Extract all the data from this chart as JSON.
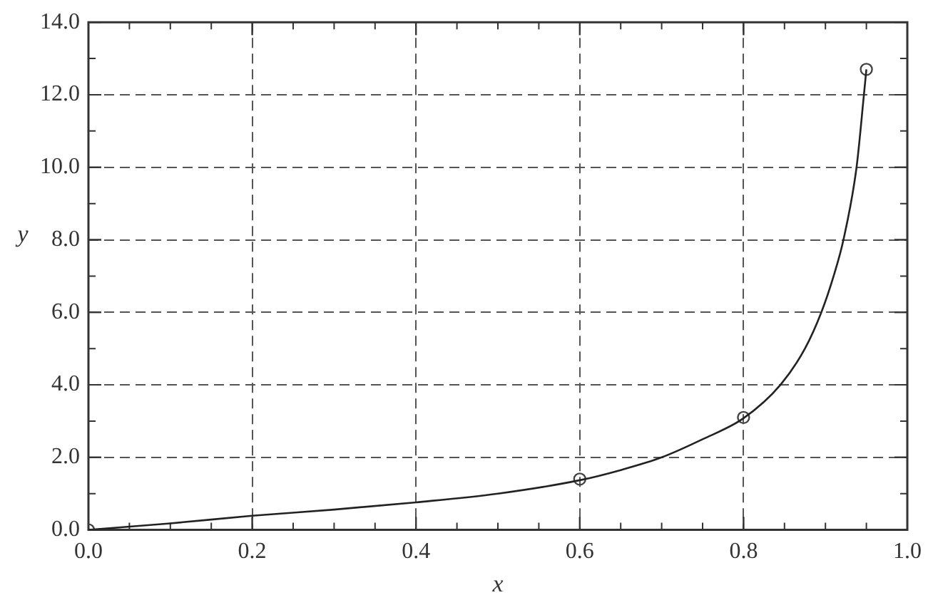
{
  "chart_data": {
    "type": "line",
    "xlabel": "x",
    "ylabel": "y",
    "series": [
      {
        "color": "#222222",
        "marker": "none",
        "x": [
          0,
          0.1,
          0.2,
          0.3,
          0.4,
          0.5,
          0.6,
          0.65,
          0.7,
          0.75,
          0.8,
          0.845,
          0.875,
          0.895,
          0.91,
          0.922,
          0.938,
          0.947,
          0.95
        ],
        "values": [
          0,
          0.18,
          0.39,
          0.56,
          0.76,
          1.0,
          1.37,
          1.65,
          2.0,
          2.5,
          3.08,
          4.0,
          5.0,
          6.0,
          7.0,
          8.0,
          10.0,
          12.0,
          12.7
        ]
      },
      {
        "type": "scatter",
        "color": "#444444",
        "marker": "circle",
        "x": [
          0,
          0.6,
          0.8,
          0.95
        ],
        "values": [
          0,
          1.4,
          3.1,
          12.7
        ]
      }
    ],
    "xlim": [
      0,
      1
    ],
    "ylim": [
      0,
      14
    ],
    "xticks": [
      {
        "value": 0,
        "label": "0.0"
      },
      0.2,
      0.4,
      0.6,
      0.8,
      {
        "value": 1,
        "label": "1.0"
      }
    ],
    "yticks": [
      {
        "value": 0,
        "label": "0.0"
      },
      {
        "value": 2,
        "label": "2.0"
      },
      {
        "value": 4,
        "label": "4.0"
      },
      {
        "value": 6,
        "label": "6.0"
      },
      {
        "value": 8,
        "label": "8.0"
      },
      {
        "value": 10,
        "label": "10.0"
      },
      {
        "value": 12,
        "label": "12.0"
      },
      {
        "value": 14,
        "label": "14.0"
      }
    ],
    "grid": true,
    "legend": false
  }
}
